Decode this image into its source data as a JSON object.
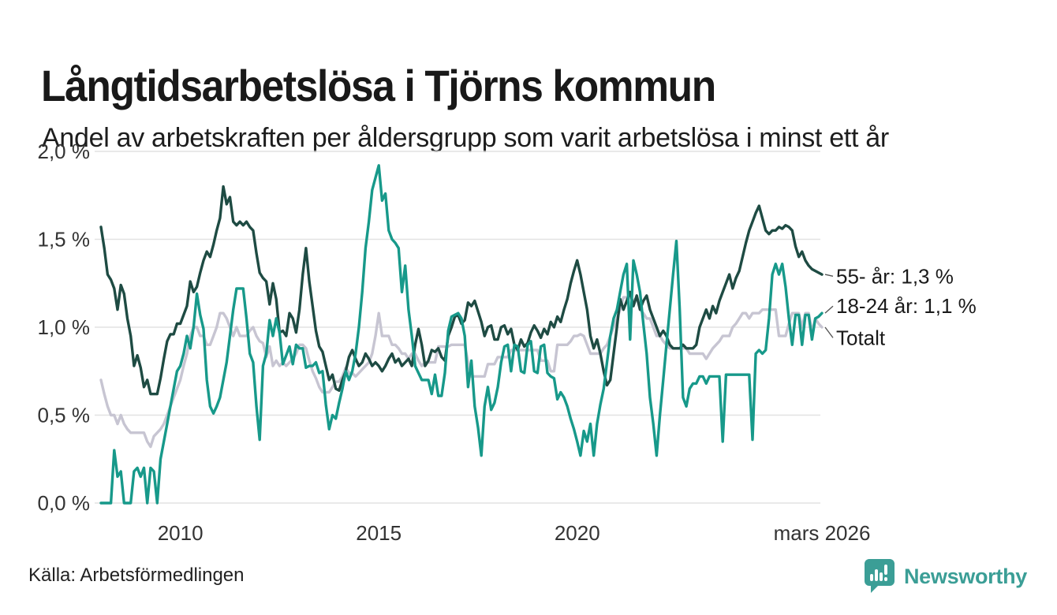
{
  "title": "Långtidsarbetslösa i Tjörns kommun",
  "subtitle": "Andel av arbetskraften per åldersgrupp som varit arbetslösa i minst ett år",
  "source": "Källa: Arbetsförmedlingen",
  "brand": {
    "name": "Newsworthy",
    "color": "#3b9e96",
    "icon": "newsworthy-speech-bubble-bar-chart-icon"
  },
  "chart_data": {
    "type": "line",
    "title": "Långtidsarbetslösa i Tjörns kommun",
    "subtitle": "Andel av arbetskraften per åldersgrupp som varit arbetslösa i minst ett år",
    "x": {
      "start": "2008-01",
      "end": "2026-03",
      "step": "month",
      "count": 219
    },
    "ylim": [
      0,
      2.0
    ],
    "grid": true,
    "grid_color": "#e2e2e2",
    "tick_color": "#333333",
    "y_ticks": [
      {
        "value": 2.0,
        "label": "2,0 %"
      },
      {
        "value": 1.5,
        "label": "1,5 %"
      },
      {
        "value": 1.0,
        "label": "1,0 %"
      },
      {
        "value": 0.5,
        "label": "0,5 %"
      },
      {
        "value": 0.0,
        "label": "0,0 %"
      }
    ],
    "x_ticks": [
      {
        "index": 24,
        "label": "2010"
      },
      {
        "index": 84,
        "label": "2015"
      },
      {
        "index": 144,
        "label": "2020"
      },
      {
        "index": 218,
        "label": "mars 2026"
      }
    ],
    "legend_position": "end-labels-right",
    "series": [
      {
        "id": "totalt",
        "name": "Totalt",
        "end_label": "Totalt",
        "label_anchor_value": 0.94,
        "color": "#c7c5d2",
        "values": [
          0.7,
          0.62,
          0.55,
          0.5,
          0.5,
          0.45,
          0.5,
          0.45,
          0.42,
          0.4,
          0.4,
          0.4,
          0.4,
          0.4,
          0.35,
          0.32,
          0.38,
          0.4,
          0.42,
          0.45,
          0.5,
          0.55,
          0.6,
          0.65,
          0.7,
          0.78,
          0.85,
          0.95,
          1.0,
          1.0,
          0.95,
          0.95,
          0.9,
          0.9,
          0.95,
          1.0,
          1.08,
          1.08,
          1.05,
          1.0,
          0.95,
          1.0,
          0.95,
          0.95,
          0.95,
          0.98,
          1.0,
          0.95,
          0.92,
          0.91,
          0.83,
          0.89,
          0.78,
          0.81,
          0.78,
          0.8,
          0.78,
          0.8,
          0.82,
          0.85,
          0.9,
          0.9,
          0.88,
          0.81,
          0.75,
          0.71,
          0.66,
          0.63,
          0.63,
          0.63,
          0.66,
          0.69,
          0.69,
          0.72,
          0.77,
          0.74,
          0.74,
          0.72,
          0.74,
          0.76,
          0.78,
          0.8,
          0.85,
          0.95,
          1.08,
          0.95,
          0.95,
          0.95,
          0.9,
          0.9,
          0.88,
          0.85,
          0.85,
          0.82,
          0.85,
          0.85,
          0.81,
          0.78,
          0.8,
          0.8,
          0.8,
          0.8,
          0.89,
          0.89,
          0.89,
          0.89,
          0.9,
          0.9,
          0.9,
          0.9,
          0.9,
          0.8,
          0.72,
          0.72,
          0.72,
          0.72,
          0.72,
          0.79,
          0.79,
          0.79,
          0.83,
          0.83,
          0.83,
          0.83,
          0.87,
          0.87,
          0.87,
          0.87,
          0.87,
          0.87,
          0.87,
          0.87,
          0.87,
          0.81,
          0.81,
          0.81,
          0.75,
          0.75,
          0.9,
          0.9,
          0.9,
          0.9,
          0.92,
          0.95,
          0.95,
          0.96,
          0.95,
          0.9,
          0.85,
          0.85,
          0.85,
          0.85,
          0.88,
          0.9,
          0.95,
          1.0,
          1.05,
          1.1,
          1.17,
          1.17,
          1.17,
          1.15,
          1.17,
          1.1,
          1.08,
          1.05,
          1.05,
          1.0,
          0.95,
          0.95,
          0.92,
          0.9,
          0.88,
          0.88,
          0.88,
          0.88,
          0.88,
          0.88,
          0.85,
          0.85,
          0.85,
          0.85,
          0.85,
          0.82,
          0.85,
          0.88,
          0.9,
          0.92,
          0.95,
          0.95,
          0.95,
          1.0,
          1.02,
          1.05,
          1.08,
          1.08,
          1.05,
          1.08,
          1.08,
          1.08,
          1.1,
          1.1,
          1.1,
          1.1,
          1.1,
          0.95,
          0.95,
          0.95,
          1.02,
          1.08,
          1.08,
          1.08,
          1.0,
          1.08,
          1.08,
          0.97,
          1.05,
          1.02,
          1.0
        ]
      },
      {
        "id": "55-ar",
        "name": "55- år",
        "end_label": "55- år: 1,3 %",
        "label_anchor_value": 1.29,
        "color": "#1e4b43",
        "values": [
          1.57,
          1.45,
          1.3,
          1.27,
          1.22,
          1.1,
          1.24,
          1.19,
          1.05,
          0.95,
          0.78,
          0.84,
          0.77,
          0.66,
          0.7,
          0.62,
          0.62,
          0.62,
          0.71,
          0.82,
          0.92,
          0.96,
          0.96,
          1.02,
          1.02,
          1.07,
          1.12,
          1.26,
          1.2,
          1.23,
          1.31,
          1.38,
          1.43,
          1.4,
          1.47,
          1.55,
          1.62,
          1.8,
          1.7,
          1.74,
          1.6,
          1.58,
          1.6,
          1.58,
          1.6,
          1.57,
          1.55,
          1.42,
          1.31,
          1.28,
          1.26,
          1.13,
          1.25,
          1.16,
          0.97,
          0.98,
          0.95,
          1.08,
          1.05,
          0.97,
          1.1,
          1.3,
          1.45,
          1.26,
          1.12,
          0.98,
          0.89,
          0.86,
          0.78,
          0.7,
          0.73,
          0.65,
          0.64,
          0.7,
          0.75,
          0.83,
          0.87,
          0.82,
          0.78,
          0.8,
          0.85,
          0.82,
          0.78,
          0.8,
          0.78,
          0.75,
          0.78,
          0.82,
          0.85,
          0.8,
          0.82,
          0.78,
          0.8,
          0.82,
          0.78,
          0.9,
          0.99,
          0.9,
          0.78,
          0.81,
          0.87,
          0.86,
          0.88,
          0.83,
          0.81,
          0.95,
          1.0,
          1.06,
          1.07,
          1.02,
          1.04,
          1.14,
          1.12,
          1.15,
          1.09,
          1.03,
          0.95,
          1.0,
          1.01,
          0.93,
          0.93,
          1.0,
          1.01,
          0.96,
          0.99,
          0.9,
          0.87,
          0.93,
          0.89,
          0.91,
          0.97,
          1.01,
          0.98,
          0.94,
          0.99,
          0.96,
          1.03,
          1.0,
          1.06,
          1.03,
          1.1,
          1.16,
          1.25,
          1.32,
          1.38,
          1.3,
          1.2,
          1.1,
          0.95,
          0.88,
          0.93,
          0.85,
          0.75,
          0.67,
          0.7,
          0.85,
          1.0,
          1.16,
          1.1,
          1.15,
          1.2,
          1.12,
          1.18,
          1.1,
          1.15,
          1.18,
          1.1,
          1.05,
          1.0,
          0.95,
          0.98,
          0.95,
          0.9,
          0.88,
          0.88,
          0.88,
          0.9,
          0.88,
          0.88,
          0.88,
          0.9,
          1.0,
          1.05,
          1.1,
          1.05,
          1.12,
          1.08,
          1.15,
          1.2,
          1.25,
          1.3,
          1.22,
          1.28,
          1.32,
          1.4,
          1.48,
          1.55,
          1.6,
          1.65,
          1.69,
          1.62,
          1.55,
          1.53,
          1.55,
          1.55,
          1.57,
          1.56,
          1.58,
          1.57,
          1.55,
          1.46,
          1.4,
          1.43,
          1.38,
          1.35,
          1.33,
          1.32,
          1.31,
          1.3
        ]
      },
      {
        "id": "18-24-ar",
        "name": "18-24 år",
        "end_label": "18-24 år: 1,1 %",
        "label_anchor_value": 1.12,
        "color": "#17998a",
        "fade_below_indices": [
          188,
          197
        ],
        "values": [
          0.0,
          0.0,
          0.0,
          0.0,
          0.3,
          0.15,
          0.18,
          0.0,
          0.0,
          0.0,
          0.18,
          0.2,
          0.15,
          0.2,
          0.0,
          0.2,
          0.18,
          0.0,
          0.25,
          0.35,
          0.45,
          0.55,
          0.65,
          0.75,
          0.78,
          0.85,
          0.95,
          0.88,
          1.0,
          1.19,
          1.07,
          0.99,
          0.7,
          0.55,
          0.51,
          0.55,
          0.6,
          0.7,
          0.8,
          0.95,
          1.1,
          1.22,
          1.22,
          1.22,
          1.05,
          0.85,
          0.8,
          0.55,
          0.36,
          0.78,
          0.85,
          1.04,
          0.95,
          1.05,
          0.97,
          0.79,
          0.84,
          0.89,
          0.79,
          0.9,
          0.88,
          0.88,
          0.77,
          0.78,
          0.78,
          0.8,
          0.74,
          0.75,
          0.56,
          0.42,
          0.5,
          0.48,
          0.57,
          0.65,
          0.75,
          0.7,
          0.75,
          0.85,
          1.0,
          1.2,
          1.45,
          1.6,
          1.78,
          1.85,
          1.92,
          1.72,
          1.76,
          1.55,
          1.5,
          1.48,
          1.45,
          1.2,
          1.35,
          1.1,
          0.95,
          0.78,
          0.74,
          0.7,
          0.7,
          0.7,
          0.62,
          0.73,
          0.61,
          0.61,
          0.74,
          0.98,
          1.06,
          1.07,
          1.08,
          1.05,
          0.95,
          0.66,
          0.81,
          0.55,
          0.43,
          0.27,
          0.55,
          0.66,
          0.53,
          0.57,
          0.66,
          0.8,
          0.89,
          0.9,
          0.75,
          0.9,
          0.89,
          0.75,
          0.74,
          0.9,
          0.92,
          0.75,
          0.74,
          0.89,
          0.9,
          0.74,
          0.72,
          0.71,
          0.59,
          0.63,
          0.6,
          0.55,
          0.48,
          0.42,
          0.35,
          0.27,
          0.41,
          0.35,
          0.45,
          0.27,
          0.45,
          0.56,
          0.65,
          0.8,
          0.95,
          1.05,
          1.1,
          1.2,
          1.3,
          1.36,
          0.93,
          1.38,
          1.3,
          1.2,
          1.02,
          0.85,
          0.6,
          0.45,
          0.27,
          0.5,
          0.7,
          0.9,
          1.1,
          1.3,
          1.49,
          1.1,
          0.6,
          0.55,
          0.65,
          0.68,
          0.68,
          0.72,
          0.72,
          0.68,
          0.72,
          0.72,
          0.72,
          0.72,
          0.35,
          0.73,
          0.73,
          0.73,
          0.73,
          0.73,
          0.73,
          0.73,
          0.73,
          0.36,
          0.85,
          0.87,
          0.85,
          0.87,
          1.05,
          1.3,
          1.36,
          1.3,
          1.36,
          1.23,
          1.05,
          0.9,
          1.07,
          1.07,
          0.9,
          1.07,
          1.07,
          0.93,
          1.05,
          1.06,
          1.08
        ]
      }
    ]
  }
}
